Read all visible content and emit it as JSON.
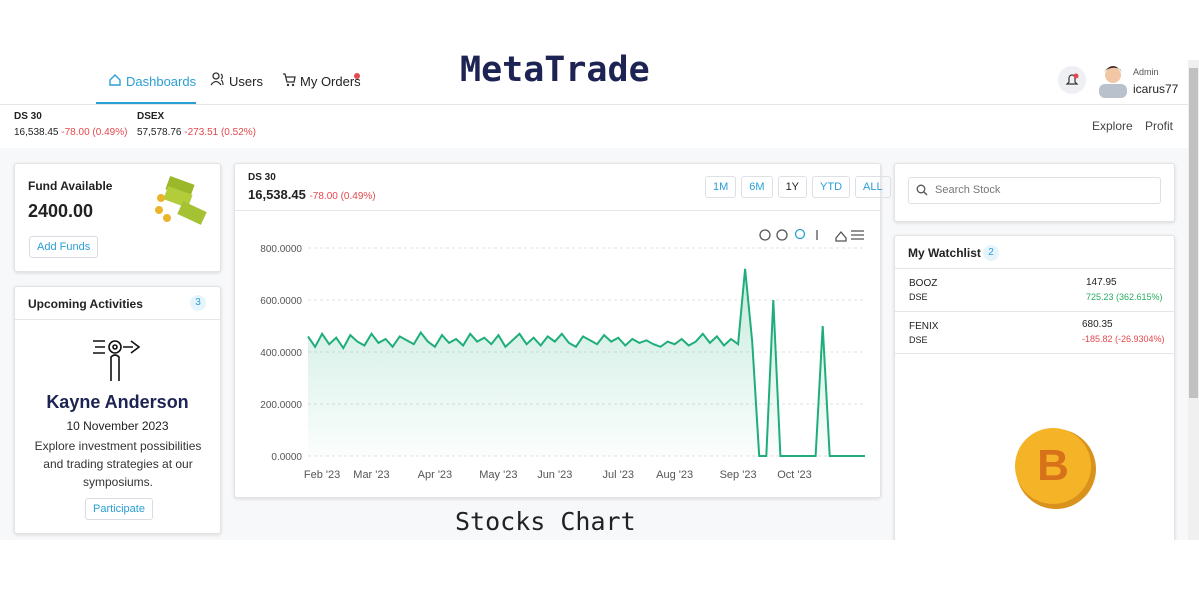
{
  "header": {
    "title": "MetaTrade",
    "nav": [
      "Dashboards",
      "Users",
      "My Orders"
    ],
    "user": {
      "role": "Admin",
      "name": "icarus77"
    }
  },
  "tickers": [
    {
      "name": "DS 30",
      "value": "16,538.45",
      "change": "-78.00 (0.49%)"
    },
    {
      "name": "DSEX",
      "value": "57,578.76",
      "change": "-273.51 (0.52%)"
    }
  ],
  "links": [
    "Explore",
    "Profit"
  ],
  "fund": {
    "title": "Fund Available",
    "amount": "2400.00",
    "button": "Add Funds"
  },
  "activities": {
    "title": "Upcoming Activities",
    "count": 3,
    "name": "Kayne Anderson",
    "date": "10 November 2023",
    "description": "Explore investment possibilities and trading strategies at our symposiums.",
    "button": "Participate"
  },
  "chart_panel": {
    "name": "DS 30",
    "value": "16,538.45",
    "change": "-78.00 (0.49%)",
    "ranges": [
      "1M",
      "6M",
      "1Y",
      "YTD",
      "ALL"
    ],
    "caption": "Stocks Chart"
  },
  "chart_data": {
    "type": "area",
    "color": "#1fae7a",
    "categories": [
      null,
      null,
      "Feb '23",
      null,
      null,
      null,
      null,
      null,
      null,
      "Mar '23",
      null,
      null,
      null,
      null,
      null,
      null,
      null,
      null,
      "Apr '23",
      null,
      null,
      null,
      null,
      null,
      null,
      null,
      null,
      "May '23",
      null,
      null,
      null,
      null,
      null,
      null,
      null,
      "Jun '23",
      null,
      null,
      null,
      null,
      null,
      null,
      null,
      null,
      "Jul '23",
      null,
      null,
      null,
      null,
      null,
      null,
      null,
      "Aug '23",
      null,
      null,
      null,
      null,
      null,
      null,
      null,
      null,
      "Sep '23",
      null,
      null,
      null,
      null,
      null,
      null,
      null,
      "Oct '23",
      null,
      null,
      null,
      null,
      null,
      null,
      null,
      null,
      null,
      null
    ],
    "values": [
      460,
      420,
      470,
      430,
      455,
      415,
      465,
      440,
      425,
      470,
      435,
      450,
      420,
      460,
      445,
      430,
      475,
      440,
      420,
      465,
      435,
      450,
      425,
      470,
      440,
      455,
      430,
      465,
      420,
      445,
      470,
      430,
      455,
      425,
      460,
      440,
      470,
      435,
      420,
      460,
      445,
      430,
      465,
      440,
      455,
      425,
      450,
      435,
      445,
      430,
      420,
      440,
      430,
      450,
      425,
      440,
      470,
      435,
      460,
      425,
      450,
      430,
      720,
      440,
      0,
      0,
      600,
      0,
      0,
      0,
      0,
      0,
      0,
      500,
      0,
      0,
      0,
      0,
      0,
      0
    ],
    "ylim": [
      0,
      800
    ],
    "yticks": [
      {
        "value": 0,
        "label": "0.0000"
      },
      {
        "value": 200,
        "label": "200.0000"
      },
      {
        "value": 400,
        "label": "400.0000"
      },
      {
        "value": 600,
        "label": "600.0000"
      },
      {
        "value": 800,
        "label": "800.0000"
      }
    ],
    "grid": true
  },
  "search": {
    "placeholder": "Search Stock"
  },
  "watchlist": {
    "title": "My Watchlist",
    "count": 2,
    "items": [
      {
        "symbol": "BOOZ",
        "exchange": "DSE",
        "price": "147.95",
        "change": "725.23 (362.615%)"
      },
      {
        "symbol": "FENIX",
        "exchange": "DSE",
        "price": "680.35",
        "change": "-185.82 (-26.9304%)"
      }
    ]
  }
}
